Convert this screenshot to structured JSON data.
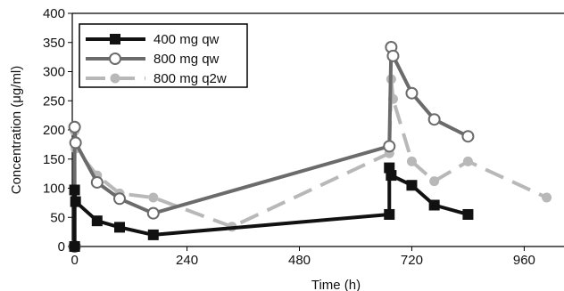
{
  "chart_data": {
    "type": "line",
    "xlabel": "Time (h)",
    "ylabel": "Concentration (μg/ml)",
    "xlim": [
      -5,
      1045
    ],
    "ylim": [
      0,
      400
    ],
    "xticks": [
      0,
      240,
      480,
      720,
      960
    ],
    "yticks": [
      0,
      50,
      100,
      150,
      200,
      250,
      300,
      350,
      400
    ],
    "grid": false,
    "legend_position": "top-left",
    "series": [
      {
        "name": "400 mg qw",
        "color": "#111111",
        "marker": "filled-square",
        "line": "solid",
        "x": [
          0,
          0,
          2,
          48,
          96,
          168,
          672,
          672,
          676,
          720,
          768,
          840
        ],
        "y": [
          0,
          97,
          77,
          44,
          33,
          20,
          55,
          135,
          122,
          105,
          71,
          55
        ]
      },
      {
        "name": "800 mg qw",
        "color": "#6b6b6b",
        "marker": "open-circle",
        "line": "solid",
        "x": [
          0,
          0,
          2,
          48,
          96,
          168,
          672,
          676,
          680,
          720,
          768,
          840
        ],
        "y": [
          0,
          205,
          178,
          110,
          82,
          57,
          172,
          342,
          327,
          263,
          218,
          189
        ]
      },
      {
        "name": "800 mg q2w",
        "color": "#b8b8b8",
        "marker": "filled-circle",
        "line": "dashed",
        "x": [
          0,
          0,
          2,
          48,
          96,
          168,
          336,
          672,
          676,
          680,
          720,
          768,
          840,
          1008
        ],
        "y": [
          0,
          198,
          168,
          122,
          91,
          84,
          34,
          160,
          287,
          253,
          146,
          112,
          146,
          84
        ]
      }
    ]
  }
}
